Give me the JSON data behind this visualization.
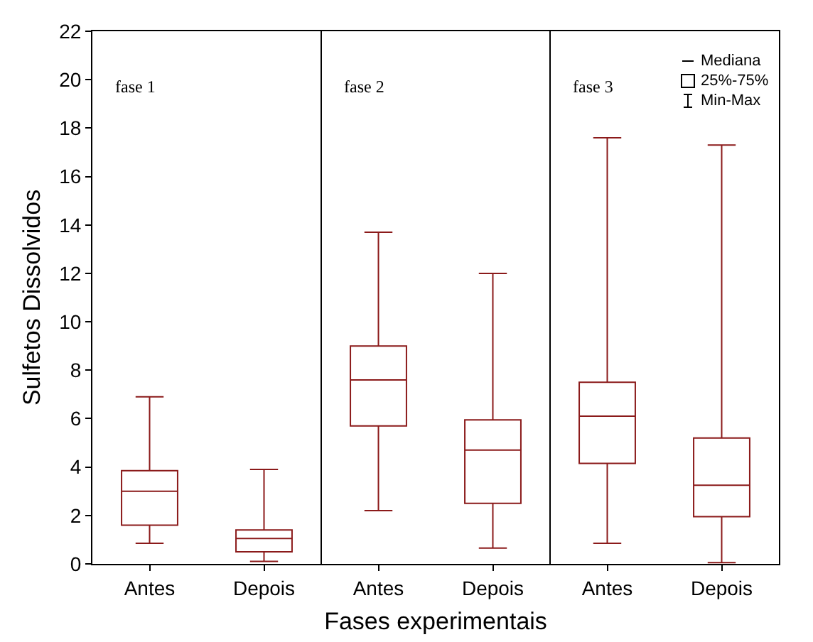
{
  "chart_data": {
    "type": "box",
    "xlabel": "Fases experimentais",
    "ylabel": "Sulfetos Dissolvidos",
    "categories": [
      "Antes",
      "Depois",
      "Antes",
      "Depois",
      "Antes",
      "Depois"
    ],
    "boxes": [
      {
        "low": 0.85,
        "q1": 1.6,
        "median": 3.0,
        "q3": 3.85,
        "high": 6.9
      },
      {
        "low": 0.1,
        "q1": 0.5,
        "median": 1.05,
        "q3": 1.4,
        "high": 3.9
      },
      {
        "low": 2.2,
        "q1": 5.7,
        "median": 7.6,
        "q3": 9.0,
        "high": 13.7
      },
      {
        "low": 0.65,
        "q1": 2.5,
        "median": 4.7,
        "q3": 5.95,
        "high": 12.0
      },
      {
        "low": 0.85,
        "q1": 4.15,
        "median": 6.1,
        "q3": 7.5,
        "high": 17.6
      },
      {
        "low": 0.05,
        "q1": 1.95,
        "median": 3.25,
        "q3": 5.2,
        "high": 17.3
      }
    ],
    "color": "#8b1a1a",
    "ylim": [
      0,
      22
    ],
    "yticks": [
      0,
      2,
      4,
      6,
      8,
      10,
      12,
      14,
      16,
      18,
      20,
      22
    ],
    "annotations": [
      "fase 1",
      "fase 2",
      "fase 3",
      "Mediana",
      "25%-75%",
      "Min-Max"
    ],
    "grid": false
  }
}
